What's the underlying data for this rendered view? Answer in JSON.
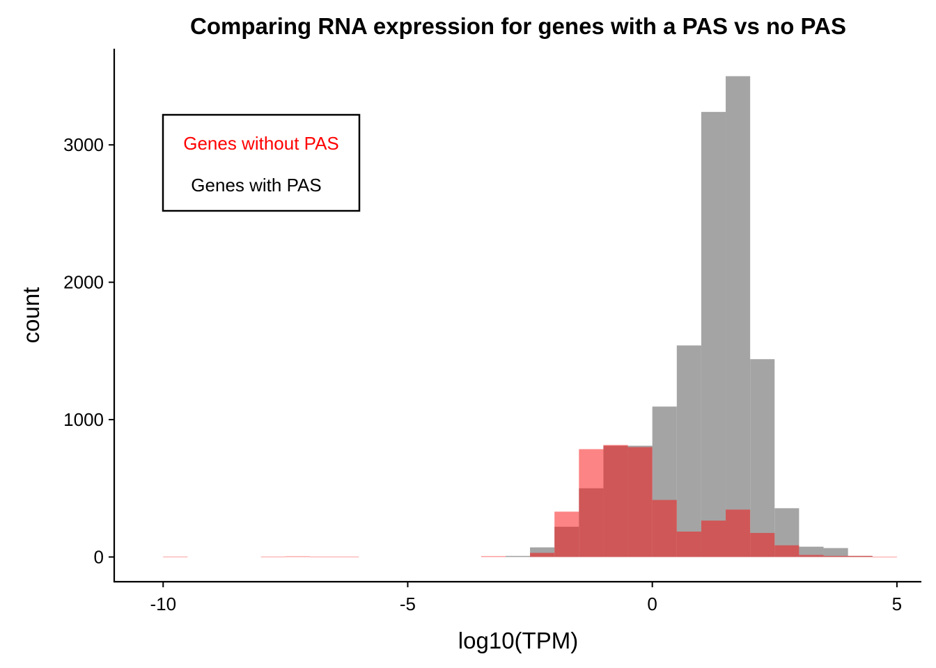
{
  "chart_data": {
    "type": "histogram",
    "title": "Comparing RNA expression for genes with a PAS vs no PAS",
    "xlabel": "log10(TPM)",
    "ylabel": "count",
    "xlim": [
      -11,
      5.5
    ],
    "ylim": [
      -180,
      3700
    ],
    "x_ticks": [
      -10,
      -5,
      0,
      5
    ],
    "x_tick_labels": [
      "-10",
      "-5",
      "0",
      "5"
    ],
    "y_ticks": [
      0,
      1000,
      2000,
      3000
    ],
    "y_tick_labels": [
      "0",
      "1000",
      "2000",
      "3000"
    ],
    "bin_width": 0.5,
    "grid": false,
    "legend": {
      "placement": "top-left",
      "entries": [
        {
          "label": "Genes without PAS",
          "color": "#ff0000"
        },
        {
          "label": "Genes with PAS",
          "color": "#000000"
        }
      ]
    },
    "series": [
      {
        "name": "Genes with PAS",
        "color": "#a4a4a4",
        "bins": [
          {
            "x0": -3.0,
            "x1": -2.5,
            "count": 8
          },
          {
            "x0": -2.5,
            "x1": -2.0,
            "count": 70
          },
          {
            "x0": -2.0,
            "x1": -1.5,
            "count": 220
          },
          {
            "x0": -1.5,
            "x1": -1.0,
            "count": 500
          },
          {
            "x0": -1.0,
            "x1": -0.5,
            "count": 810
          },
          {
            "x0": -0.5,
            "x1": 0.0,
            "count": 810
          },
          {
            "x0": 0.0,
            "x1": 0.5,
            "count": 1095
          },
          {
            "x0": 0.5,
            "x1": 1.0,
            "count": 1540
          },
          {
            "x0": 1.0,
            "x1": 1.5,
            "count": 3240
          },
          {
            "x0": 1.5,
            "x1": 2.0,
            "count": 3500
          },
          {
            "x0": 2.0,
            "x1": 2.5,
            "count": 1440
          },
          {
            "x0": 2.5,
            "x1": 3.0,
            "count": 355
          },
          {
            "x0": 3.0,
            "x1": 3.5,
            "count": 75
          },
          {
            "x0": 3.5,
            "x1": 4.0,
            "count": 65
          },
          {
            "x0": 4.0,
            "x1": 4.5,
            "count": 8
          }
        ]
      },
      {
        "name": "Genes without PAS",
        "color": "#fa0a0a",
        "opacity": 0.5,
        "bins": [
          {
            "x0": -10.0,
            "x1": -9.5,
            "count": 3
          },
          {
            "x0": -8.0,
            "x1": -7.5,
            "count": 3
          },
          {
            "x0": -7.5,
            "x1": -7.0,
            "count": 5
          },
          {
            "x0": -7.0,
            "x1": -6.5,
            "count": 3
          },
          {
            "x0": -6.5,
            "x1": -6.0,
            "count": 3
          },
          {
            "x0": -3.5,
            "x1": -3.0,
            "count": 6
          },
          {
            "x0": -2.5,
            "x1": -2.0,
            "count": 30
          },
          {
            "x0": -2.0,
            "x1": -1.5,
            "count": 330
          },
          {
            "x0": -1.5,
            "x1": -1.0,
            "count": 785
          },
          {
            "x0": -1.0,
            "x1": -0.5,
            "count": 815
          },
          {
            "x0": -0.5,
            "x1": 0.0,
            "count": 800
          },
          {
            "x0": 0.0,
            "x1": 0.5,
            "count": 415
          },
          {
            "x0": 0.5,
            "x1": 1.0,
            "count": 185
          },
          {
            "x0": 1.0,
            "x1": 1.5,
            "count": 265
          },
          {
            "x0": 1.5,
            "x1": 2.0,
            "count": 345
          },
          {
            "x0": 2.0,
            "x1": 2.5,
            "count": 175
          },
          {
            "x0": 2.5,
            "x1": 3.0,
            "count": 85
          },
          {
            "x0": 3.0,
            "x1": 3.5,
            "count": 15
          },
          {
            "x0": 3.5,
            "x1": 4.0,
            "count": 8
          },
          {
            "x0": 4.0,
            "x1": 4.5,
            "count": 8
          },
          {
            "x0": 4.5,
            "x1": 5.0,
            "count": 2
          }
        ]
      }
    ]
  }
}
